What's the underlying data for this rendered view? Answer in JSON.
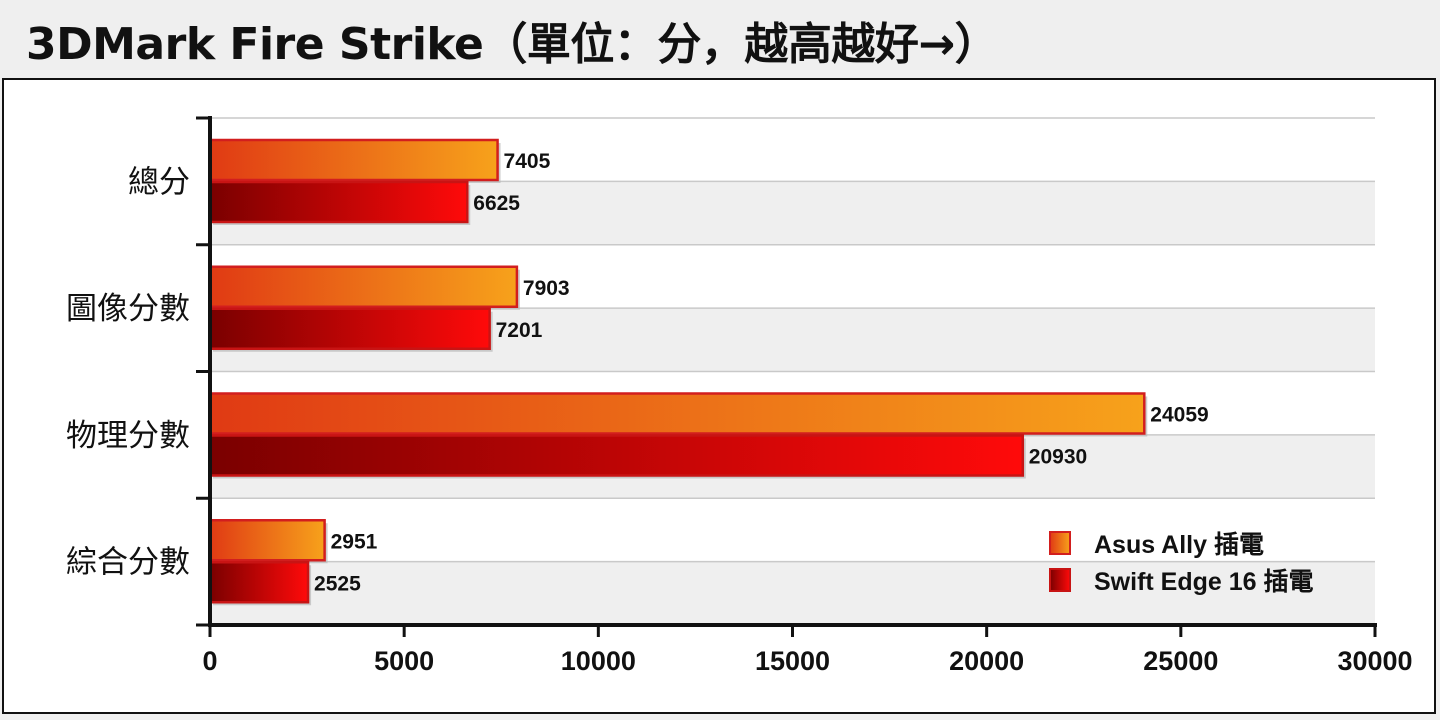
{
  "title": "3DMark Fire Strike（單位：分，越高越好→）",
  "chart_data": {
    "type": "bar",
    "orientation": "horizontal",
    "categories": [
      "總分",
      "圖像分數",
      "物理分數",
      "綜合分數"
    ],
    "series": [
      {
        "name": "Asus Ally 插電",
        "values": [
          7405,
          7903,
          24059,
          2951
        ],
        "color_light": "#f7a21b",
        "color_dark": "#e03a14"
      },
      {
        "name": "Swift Edge 16 插電",
        "values": [
          6625,
          7201,
          20930,
          2525
        ],
        "color_light": "#ff0a0a",
        "color_dark": "#7a0000"
      }
    ],
    "xlim": [
      0,
      30000
    ],
    "xticks": [
      0,
      5000,
      10000,
      15000,
      20000,
      25000,
      30000
    ],
    "grid": true,
    "legend_position": "bottom-right"
  }
}
